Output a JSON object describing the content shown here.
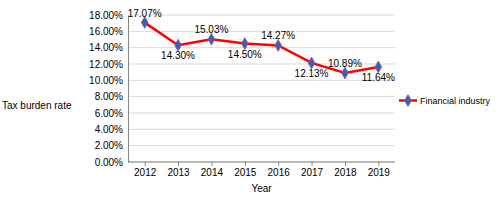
{
  "chart_data": {
    "type": "line",
    "x_label": "Year",
    "y_label": "Tax burden rate",
    "categories": [
      "2012",
      "2013",
      "2014",
      "2015",
      "2016",
      "2017",
      "2018",
      "2019"
    ],
    "series": [
      {
        "name": "Financial industry",
        "color": "#ff0000",
        "marker": "diamond",
        "values": [
          17.07,
          14.3,
          15.03,
          14.5,
          14.27,
          12.13,
          10.89,
          11.64
        ],
        "value_labels": [
          "17.07%",
          "14.30%",
          "15.03%",
          "14.50%",
          "14.27%",
          "12.13%",
          "10.89%",
          "11.64%"
        ]
      }
    ],
    "ylim": [
      0,
      18
    ],
    "yticks": [
      {
        "value": 0,
        "label": "0.00%"
      },
      {
        "value": 2,
        "label": "2.00%"
      },
      {
        "value": 4,
        "label": "4.00%"
      },
      {
        "value": 6,
        "label": "6.00%"
      },
      {
        "value": 8,
        "label": "8.00%"
      },
      {
        "value": 10,
        "label": "10.00%"
      },
      {
        "value": 12,
        "label": "12.00%"
      },
      {
        "value": 14,
        "label": "14.00%"
      },
      {
        "value": 16,
        "label": "16.00%"
      },
      {
        "value": 18,
        "label": "18.00%"
      }
    ],
    "grid": true,
    "data_labels": true,
    "legend": "right"
  }
}
